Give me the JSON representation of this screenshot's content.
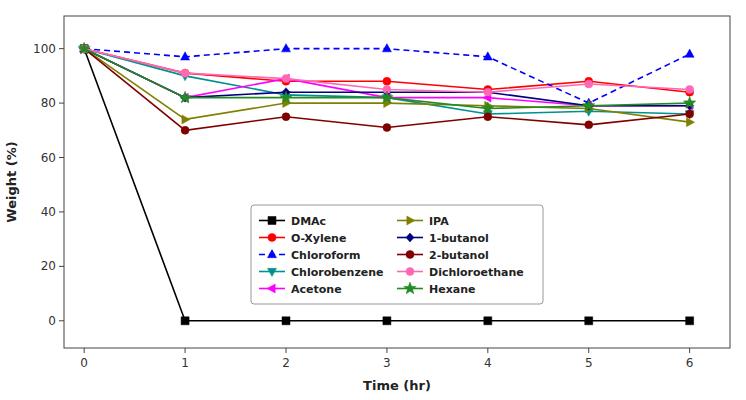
{
  "chart_data": {
    "type": "line",
    "xlabel": "Time (hr)",
    "ylabel": "Weight (%)",
    "x": [
      0,
      1,
      2,
      3,
      4,
      5,
      6
    ],
    "xlim": [
      -0.2,
      6.4
    ],
    "ylim": [
      -10,
      112
    ],
    "xticks": [
      0,
      1,
      2,
      3,
      4,
      5,
      6
    ],
    "yticks": [
      0,
      20,
      40,
      60,
      80,
      100
    ],
    "grid": false,
    "legend": "lower center",
    "series": [
      {
        "name": "DMAc",
        "color": "#000000",
        "marker": "square",
        "line_style": "solid",
        "values": [
          100,
          0,
          0,
          0,
          0,
          0,
          0
        ]
      },
      {
        "name": "O-Xylene",
        "color": "#ff0000",
        "marker": "circle",
        "line_style": "solid",
        "values": [
          100,
          91,
          88,
          88,
          85,
          88,
          84
        ]
      },
      {
        "name": "Chloroform",
        "color": "#0000ff",
        "marker": "triangle-up",
        "line_style": "dashed",
        "values": [
          100,
          97,
          100,
          100,
          97,
          80,
          98
        ]
      },
      {
        "name": "Chlorobenzene",
        "color": "#009090",
        "marker": "triangle-down",
        "line_style": "solid",
        "values": [
          100,
          90,
          83,
          82,
          76,
          77,
          76
        ]
      },
      {
        "name": "Acetone",
        "color": "#ff00ff",
        "marker": "triangle-left",
        "line_style": "solid",
        "values": [
          100,
          82,
          89,
          82,
          82,
          79,
          79
        ]
      },
      {
        "name": "IPA",
        "color": "#808000",
        "marker": "triangle-right",
        "line_style": "solid",
        "values": [
          100,
          74,
          80,
          80,
          79,
          78,
          73
        ]
      },
      {
        "name": "1-butanol",
        "color": "#000080",
        "marker": "diamond",
        "line_style": "solid",
        "values": [
          100,
          82,
          84,
          84,
          84,
          79,
          79
        ]
      },
      {
        "name": "2-butanol",
        "color": "#800000",
        "marker": "circle",
        "line_style": "solid",
        "values": [
          100,
          70,
          75,
          71,
          75,
          72,
          76
        ]
      },
      {
        "name": "Dichloroethane",
        "color": "#ff69b4",
        "marker": "circle",
        "line_style": "solid",
        "values": [
          100,
          91,
          89,
          85,
          84,
          87,
          85
        ]
      },
      {
        "name": "Hexane",
        "color": "#228B22",
        "marker": "star",
        "line_style": "solid",
        "values": [
          100,
          82,
          82,
          82,
          78,
          79,
          80
        ]
      }
    ]
  }
}
